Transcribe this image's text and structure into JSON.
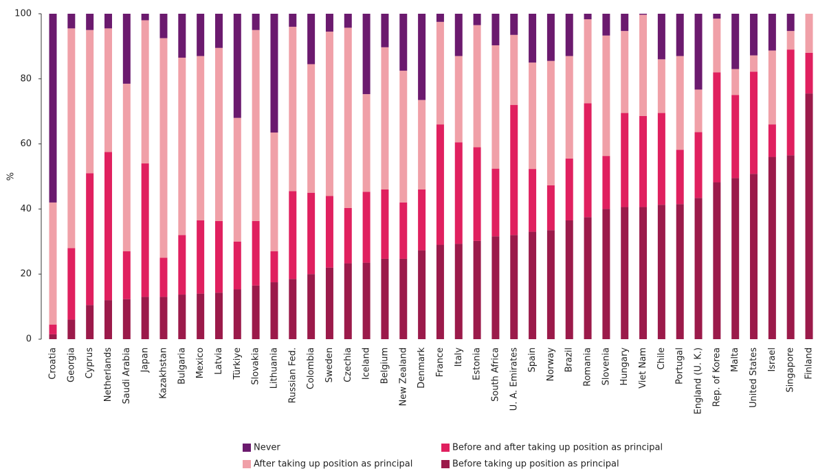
{
  "chart_data": {
    "type": "stacked_bar",
    "y_label": "%",
    "categories": [
      "Croatia",
      "Georgia",
      "Cyprus",
      "Netherlands",
      "Saudi Arabia",
      "Japan",
      "Kazakhstan",
      "Bulgaria",
      "Mexico",
      "Latvia",
      "Türkiye",
      "Slovakia",
      "Lithuania",
      "Russian Fed.",
      "Colombia",
      "Sweden",
      "Czechia",
      "Iceland",
      "Belgium",
      "New Zealand",
      "Denmark",
      "France",
      "Italy",
      "Estonia",
      "South Africa",
      "U. A. Emirates",
      "Spain",
      "Norway",
      "Brazil",
      "Romania",
      "Slovenia",
      "Hungary",
      "Viet Nam",
      "Chile",
      "Portugal",
      "England (U. K.)",
      "Rep. of Korea",
      "Malta",
      "United States",
      "Israel",
      "Singapore",
      "Finland"
    ],
    "series": [
      {
        "name": "Never",
        "color": "#6b1a6e",
        "values": [
          58,
          4.5,
          5,
          4.5,
          21.5,
          2,
          7.5,
          13.5,
          13,
          10.5,
          32,
          5,
          36.5,
          4,
          15.5,
          5.5,
          4.3,
          24.7,
          10.3,
          17.5,
          26.5,
          2.5,
          13,
          3.5,
          9.7,
          6.5,
          15,
          14.5,
          13,
          1.7,
          6.7,
          5.3,
          0.3,
          14,
          13,
          23.3,
          1.5,
          17,
          12.8,
          11.3,
          5.3,
          0
        ]
      },
      {
        "name": "After taking up position as principal",
        "color": "#f0a0a8",
        "values": [
          37.5,
          67.5,
          44,
          38,
          51.5,
          44,
          67.5,
          54.5,
          50.5,
          53.2,
          38,
          58.7,
          36.5,
          50.5,
          39.5,
          50.5,
          55.4,
          30,
          43.7,
          40.5,
          27.5,
          31.5,
          26.5,
          37.5,
          37.9,
          21.5,
          32.7,
          38.2,
          31.5,
          25.8,
          37,
          25.2,
          31.1,
          16.5,
          28.8,
          13.1,
          16.5,
          8,
          5,
          22.7,
          5.7,
          12
        ]
      },
      {
        "name": "Before and after taking up position as principal",
        "color": "#e0205f",
        "values": [
          3,
          22,
          40.5,
          45.5,
          14.7,
          41,
          12,
          18.3,
          22.5,
          22,
          14.7,
          19.8,
          9.5,
          27,
          25,
          22,
          17,
          21.8,
          21.3,
          17.3,
          18.7,
          37,
          31.2,
          28.8,
          20.8,
          40,
          19.3,
          13.8,
          19,
          35,
          16.3,
          28.9,
          28,
          28.2,
          16.7,
          20.2,
          33.8,
          25.5,
          31.4,
          10,
          32.5,
          12.5
        ]
      },
      {
        "name": "Before taking up position as principal",
        "color": "#9b1a4a",
        "values": [
          1.5,
          6,
          10.5,
          12,
          12.3,
          13,
          13,
          13.7,
          14,
          14.3,
          15.3,
          16.5,
          17.5,
          18.5,
          20,
          22,
          23.3,
          23.5,
          24.7,
          24.7,
          27.3,
          29,
          29.3,
          30.2,
          31.6,
          32,
          33,
          33.5,
          36.5,
          37.5,
          40,
          40.6,
          40.6,
          41.3,
          41.5,
          43.4,
          48.2,
          49.5,
          50.8,
          56,
          56.5,
          75.5
        ]
      }
    ],
    "ylim": [
      0,
      100
    ],
    "yticks": [
      0,
      20,
      40,
      60,
      80,
      100
    ]
  }
}
